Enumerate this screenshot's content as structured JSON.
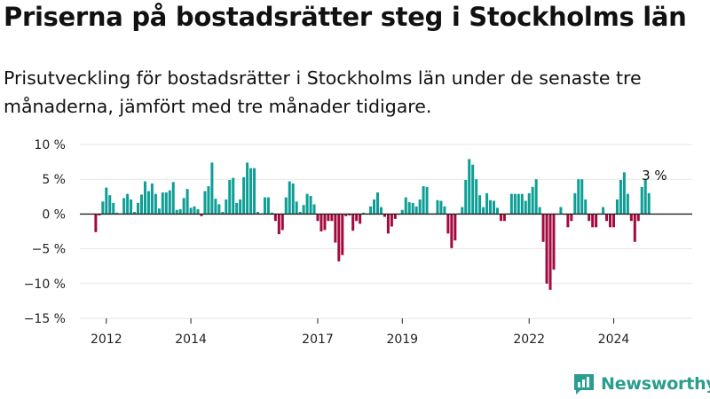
{
  "title": "Priserna på bostadsrätter steg i Stockholms län",
  "subtitle": "Prisutveckling för bostadsrätter i Stockholms län under de senaste tre månaderna, jämfört med tre månader tidigare.",
  "logo_text": "Newsworthy",
  "colors": {
    "positive": "#0d9e95",
    "negative": "#a3093f",
    "zero_line": "#222222",
    "grid": "#e6e6e6"
  },
  "chart_data": {
    "type": "bar",
    "ylim": [
      -15,
      10
    ],
    "y_ticks": [
      {
        "value": 10,
        "label": "10 %"
      },
      {
        "value": 5,
        "label": "5 %"
      },
      {
        "value": 0,
        "label": "0 %"
      },
      {
        "value": -5,
        "label": "−5 %"
      },
      {
        "value": -10,
        "label": "−10 %"
      },
      {
        "value": -15,
        "label": "−15 %"
      }
    ],
    "x_ticks": [
      {
        "label": "2012",
        "date": "2012-01"
      },
      {
        "label": "2014",
        "date": "2014-01"
      },
      {
        "label": "2017",
        "date": "2017-01"
      },
      {
        "label": "2019",
        "date": "2019-01"
      },
      {
        "label": "2022",
        "date": "2022-01"
      },
      {
        "label": "2024",
        "date": "2024-01"
      }
    ],
    "start_month": "2011-10",
    "grid": "horizontal",
    "values": [
      -2.6,
      -0.2,
      1.8,
      3.8,
      2.7,
      1.6,
      0.2,
      0.1,
      2.3,
      2.9,
      2.1,
      0.3,
      1.6,
      2.8,
      4.7,
      3.3,
      4.4,
      2.9,
      0.8,
      3.1,
      3.1,
      3.4,
      4.6,
      0.6,
      0.7,
      2.3,
      3.6,
      0.9,
      1.1,
      0.7,
      -0.3,
      3.3,
      4.0,
      7.4,
      2.2,
      1.4,
      0.3,
      2.1,
      4.9,
      5.2,
      1.6,
      2.1,
      5.3,
      7.4,
      6.6,
      6.6,
      0.3,
      0.1,
      2.4,
      2.4,
      0.2,
      -1.0,
      -2.9,
      -2.3,
      2.4,
      4.7,
      4.4,
      1.8,
      0.3,
      1.3,
      2.9,
      2.6,
      1.4,
      -1.0,
      -2.5,
      -2.3,
      -1.0,
      -1.0,
      -4.1,
      -6.8,
      -5.9,
      -0.3,
      -0.2,
      -2.4,
      -1.0,
      -1.4,
      0.2,
      0.1,
      1.1,
      2.1,
      3.1,
      1.0,
      -0.4,
      -2.8,
      -1.8,
      -0.7,
      -0.1,
      0.6,
      2.4,
      1.7,
      1.6,
      1.1,
      2.1,
      4.0,
      3.9,
      0.1,
      0.1,
      2.0,
      1.9,
      1.1,
      -2.8,
      -4.9,
      -3.8,
      0.1,
      1.0,
      4.9,
      7.9,
      7.1,
      5.0,
      2.7,
      1.0,
      3.0,
      2.0,
      1.9,
      0.9,
      -1.0,
      -1.0,
      0.1,
      2.9,
      2.9,
      2.9,
      2.9,
      1.9,
      3.0,
      3.9,
      5.0,
      1.0,
      -4.0,
      -10.0,
      -10.9,
      -8.0,
      -0.1,
      1.0,
      -0.1,
      -1.9,
      -1.0,
      3.0,
      5.0,
      5.0,
      2.1,
      -1.0,
      -1.9,
      -1.9,
      0.1,
      1.0,
      -1.0,
      -1.9,
      -1.9,
      2.1,
      4.9,
      6.0,
      2.9,
      -1.0,
      -4.0,
      -1.0,
      3.9,
      5.0,
      3.0
    ],
    "annotations": [
      {
        "text": "3 %",
        "target_date": "2025-01"
      }
    ]
  }
}
